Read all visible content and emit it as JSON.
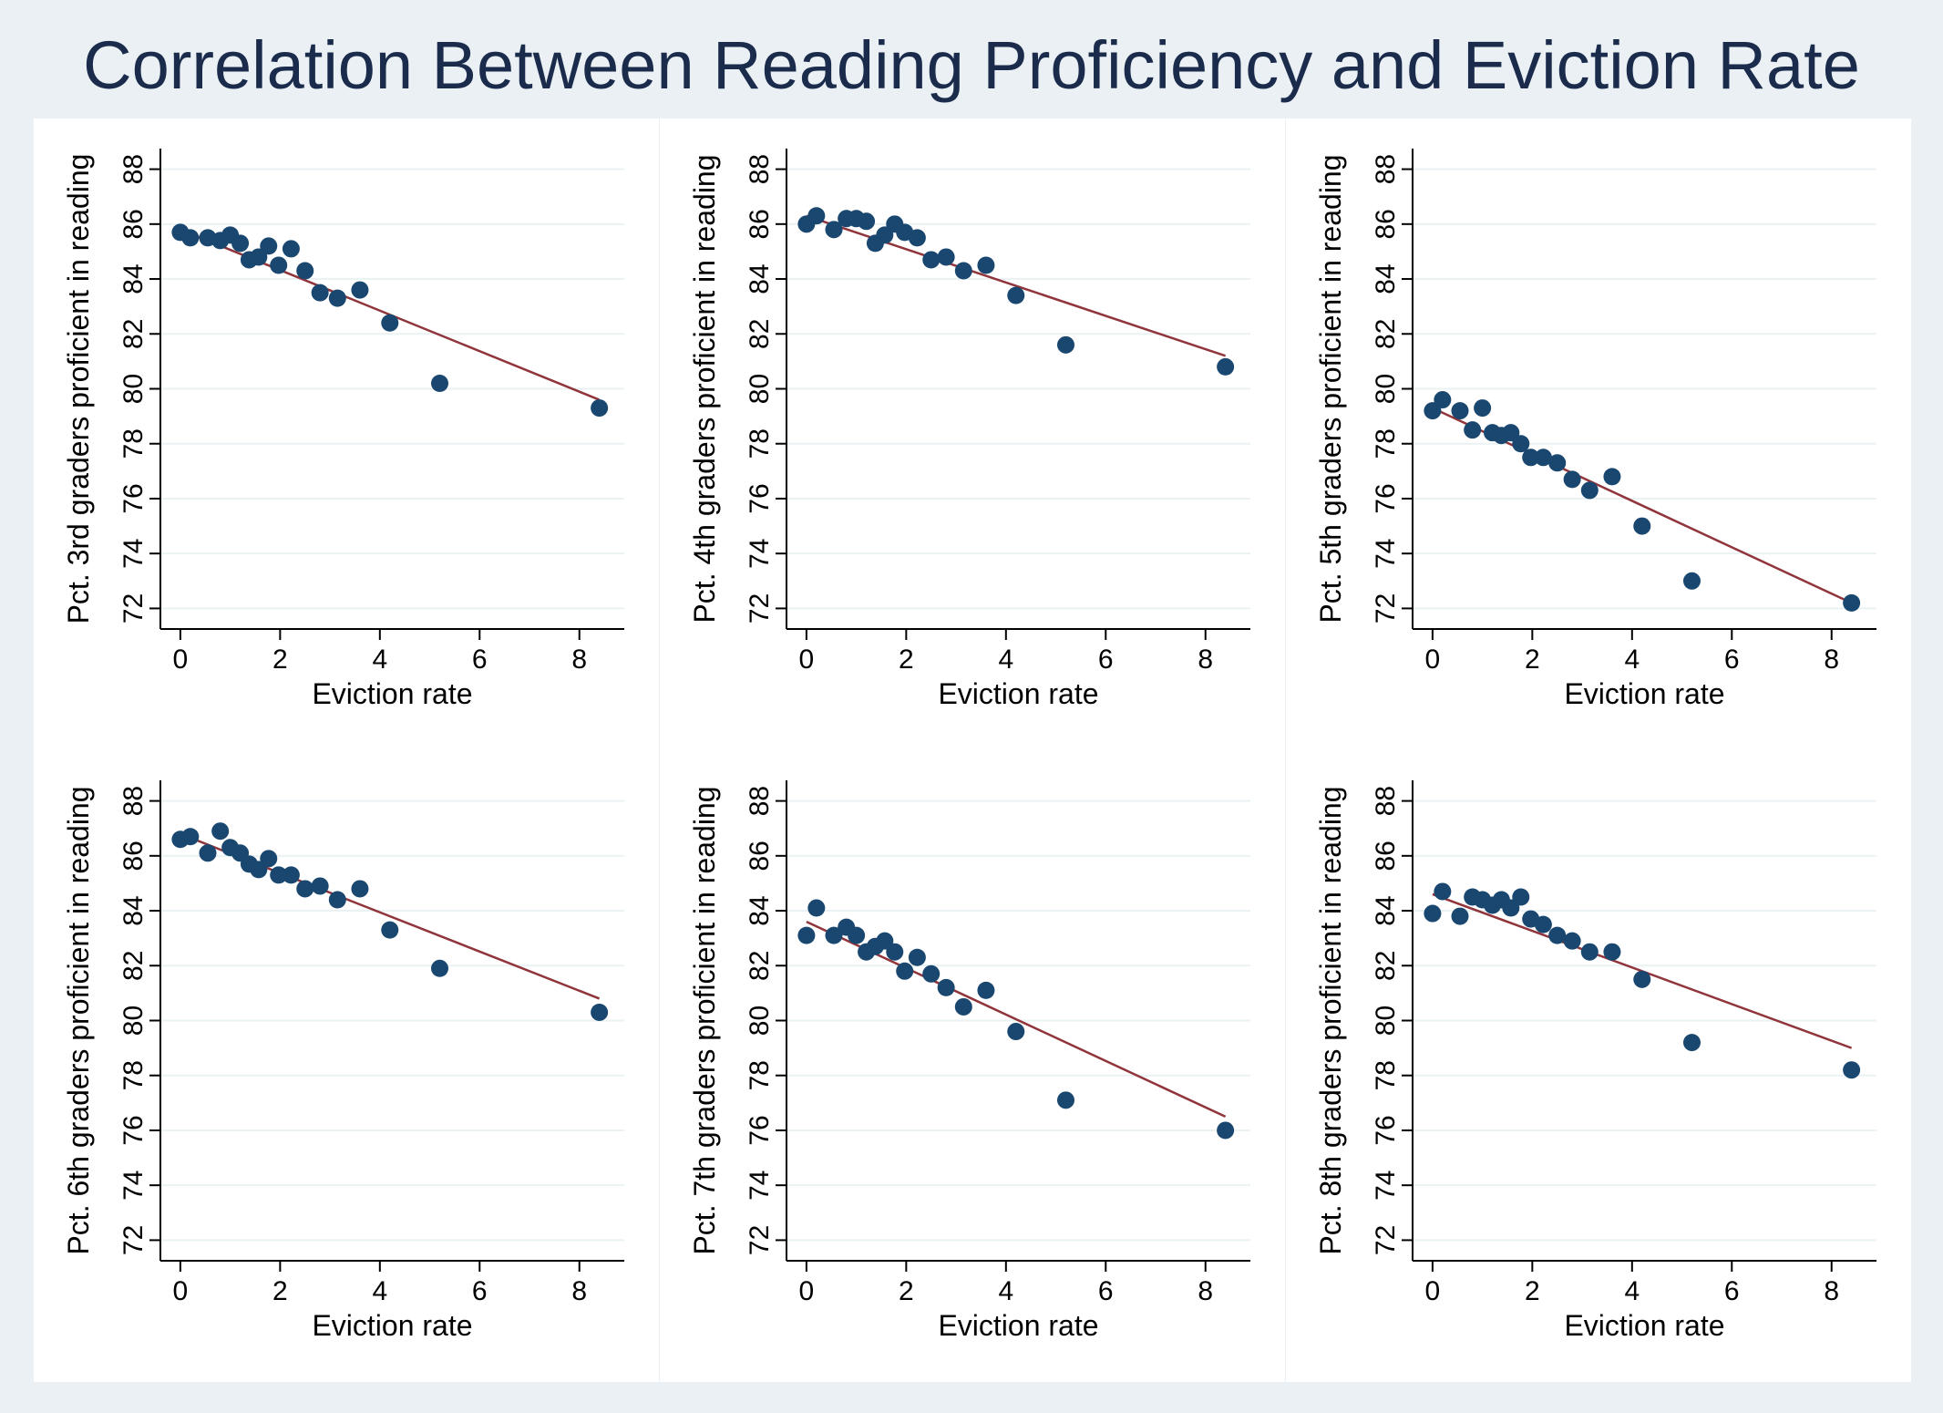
{
  "title": "Correlation Between Reading Proficiency and Eviction Rate",
  "colors": {
    "background": "#eaf0f4",
    "panel": "#ffffff",
    "marker": "#1a476f",
    "fit_line": "#90353b",
    "grid": "#eaf2f3",
    "text": "#000000",
    "title": "#1a2b4c"
  },
  "chart_data": [
    {
      "type": "scatter",
      "xlabel": "Eviction rate",
      "ylabel": "Pct. 3rd graders proficient in reading",
      "xlim": [
        0,
        8.4
      ],
      "ylim": [
        72,
        88
      ],
      "xticks": [
        0,
        2,
        4,
        6,
        8
      ],
      "yticks": [
        72,
        74,
        76,
        78,
        80,
        82,
        84,
        86,
        88
      ],
      "grid": true,
      "x": [
        0.0,
        0.2,
        0.55,
        0.8,
        1.0,
        1.2,
        1.38,
        1.57,
        1.77,
        1.97,
        2.22,
        2.5,
        2.8,
        3.15,
        3.6,
        4.2,
        5.2,
        8.4
      ],
      "y": [
        85.7,
        85.5,
        85.5,
        85.4,
        85.6,
        85.3,
        84.7,
        84.8,
        85.2,
        84.5,
        85.1,
        84.3,
        83.5,
        83.3,
        83.6,
        82.4,
        80.2,
        79.3
      ],
      "fit": {
        "x": [
          0,
          8.4
        ],
        "y": [
          85.8,
          79.6
        ]
      }
    },
    {
      "type": "scatter",
      "xlabel": "Eviction rate",
      "ylabel": "Pct. 4th graders proficient in reading",
      "xlim": [
        0,
        8.4
      ],
      "ylim": [
        72,
        88
      ],
      "xticks": [
        0,
        2,
        4,
        6,
        8
      ],
      "yticks": [
        72,
        74,
        76,
        78,
        80,
        82,
        84,
        86,
        88
      ],
      "grid": true,
      "x": [
        0.0,
        0.2,
        0.55,
        0.8,
        1.0,
        1.2,
        1.38,
        1.57,
        1.77,
        1.97,
        2.22,
        2.5,
        2.8,
        3.15,
        3.6,
        4.2,
        5.2,
        8.4
      ],
      "y": [
        86.0,
        86.3,
        85.8,
        86.2,
        86.2,
        86.1,
        85.3,
        85.6,
        86.0,
        85.7,
        85.5,
        84.7,
        84.8,
        84.3,
        84.5,
        83.4,
        81.6,
        80.8
      ],
      "fit": {
        "x": [
          0,
          8.4
        ],
        "y": [
          86.3,
          81.2
        ]
      }
    },
    {
      "type": "scatter",
      "xlabel": "Eviction rate",
      "ylabel": "Pct. 5th graders proficient in reading",
      "xlim": [
        0,
        8.4
      ],
      "ylim": [
        72,
        88
      ],
      "xticks": [
        0,
        2,
        4,
        6,
        8
      ],
      "yticks": [
        72,
        74,
        76,
        78,
        80,
        82,
        84,
        86,
        88
      ],
      "grid": true,
      "x": [
        0.0,
        0.2,
        0.55,
        0.8,
        1.0,
        1.2,
        1.38,
        1.57,
        1.77,
        1.97,
        2.22,
        2.5,
        2.8,
        3.15,
        3.6,
        4.2,
        5.2,
        8.4
      ],
      "y": [
        79.2,
        79.6,
        79.2,
        78.5,
        79.3,
        78.4,
        78.3,
        78.4,
        78.0,
        77.5,
        77.5,
        77.3,
        76.7,
        76.3,
        76.8,
        75.0,
        73.0,
        72.2
      ],
      "fit": {
        "x": [
          0,
          8.4
        ],
        "y": [
          79.3,
          72.2
        ]
      }
    },
    {
      "type": "scatter",
      "xlabel": "Eviction rate",
      "ylabel": "Pct. 6th graders proficient in reading",
      "xlim": [
        0,
        8.4
      ],
      "ylim": [
        72,
        88
      ],
      "xticks": [
        0,
        2,
        4,
        6,
        8
      ],
      "yticks": [
        72,
        74,
        76,
        78,
        80,
        82,
        84,
        86,
        88
      ],
      "grid": true,
      "x": [
        0.0,
        0.2,
        0.55,
        0.8,
        1.0,
        1.2,
        1.38,
        1.57,
        1.77,
        1.97,
        2.22,
        2.5,
        2.8,
        3.15,
        3.6,
        4.2,
        5.2,
        8.4
      ],
      "y": [
        86.6,
        86.7,
        86.1,
        86.9,
        86.3,
        86.1,
        85.7,
        85.5,
        85.9,
        85.3,
        85.3,
        84.8,
        84.9,
        84.4,
        84.8,
        83.3,
        81.9,
        80.3
      ],
      "fit": {
        "x": [
          0,
          8.4
        ],
        "y": [
          86.8,
          80.8
        ]
      }
    },
    {
      "type": "scatter",
      "xlabel": "Eviction rate",
      "ylabel": "Pct. 7th graders proficient in reading",
      "xlim": [
        0,
        8.4
      ],
      "ylim": [
        72,
        88
      ],
      "xticks": [
        0,
        2,
        4,
        6,
        8
      ],
      "yticks": [
        72,
        74,
        76,
        78,
        80,
        82,
        84,
        86,
        88
      ],
      "grid": true,
      "x": [
        0.0,
        0.2,
        0.55,
        0.8,
        1.0,
        1.2,
        1.38,
        1.57,
        1.77,
        1.97,
        2.22,
        2.5,
        2.8,
        3.15,
        3.6,
        4.2,
        5.2,
        8.4
      ],
      "y": [
        83.1,
        84.1,
        83.1,
        83.4,
        83.1,
        82.5,
        82.7,
        82.9,
        82.5,
        81.8,
        82.3,
        81.7,
        81.2,
        80.5,
        81.1,
        79.6,
        77.1,
        76.0
      ],
      "fit": {
        "x": [
          0,
          8.4
        ],
        "y": [
          83.6,
          76.5
        ]
      }
    },
    {
      "type": "scatter",
      "xlabel": "Eviction rate",
      "ylabel": "Pct. 8th graders proficient in reading",
      "xlim": [
        0,
        8.4
      ],
      "ylim": [
        72,
        88
      ],
      "xticks": [
        0,
        2,
        4,
        6,
        8
      ],
      "yticks": [
        72,
        74,
        76,
        78,
        80,
        82,
        84,
        86,
        88
      ],
      "grid": true,
      "x": [
        0.0,
        0.2,
        0.55,
        0.8,
        1.0,
        1.2,
        1.38,
        1.57,
        1.77,
        1.97,
        2.22,
        2.5,
        2.8,
        3.15,
        3.6,
        4.2,
        5.2,
        8.4
      ],
      "y": [
        83.9,
        84.7,
        83.8,
        84.5,
        84.4,
        84.2,
        84.4,
        84.1,
        84.5,
        83.7,
        83.5,
        83.1,
        82.9,
        82.5,
        82.5,
        81.5,
        79.2,
        78.2
      ],
      "fit": {
        "x": [
          0,
          8.4
        ],
        "y": [
          84.6,
          79.0
        ]
      }
    }
  ]
}
